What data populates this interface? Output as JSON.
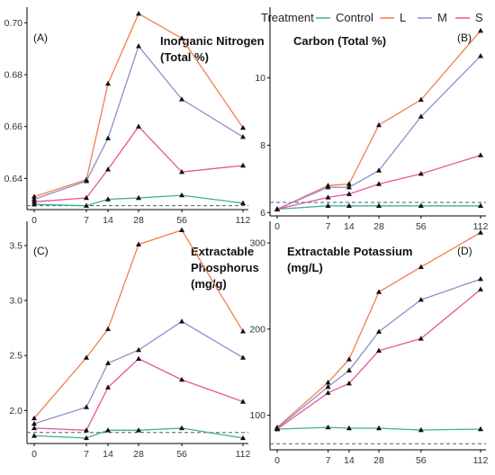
{
  "legend": {
    "title": "Treatment",
    "items": [
      {
        "label": "Control",
        "color": "#3fb08f"
      },
      {
        "label": "L",
        "color": "#f07f4f"
      },
      {
        "label": "M",
        "color": "#8f8fc9"
      },
      {
        "label": "S",
        "color": "#e8559a"
      }
    ]
  },
  "chart_data": [
    {
      "type": "line",
      "letter": "(A)",
      "title_lines": [
        "Inorganic Nitrogen",
        "(Total %)"
      ],
      "x": [
        0,
        7,
        14,
        28,
        56,
        112
      ],
      "x_ticks": [
        "0",
        "7",
        "14",
        "28",
        "56",
        "112"
      ],
      "y_ticks": [
        0.64,
        0.66,
        0.68,
        0.7
      ],
      "y_tick_labels": [
        "0.64",
        "0.66",
        "0.68",
        "0.70"
      ],
      "ylim": [
        0.628,
        0.706
      ],
      "reference_line": 0.6295,
      "series": [
        {
          "name": "Control",
          "values": [
            0.63,
            0.6295,
            0.632,
            0.6325,
            0.6335,
            0.6305
          ]
        },
        {
          "name": "L",
          "values": [
            0.633,
            0.6395,
            0.6765,
            0.7035,
            0.694,
            0.6595
          ]
        },
        {
          "name": "M",
          "values": [
            0.632,
            0.639,
            0.6555,
            0.691,
            0.6705,
            0.656
          ]
        },
        {
          "name": "S",
          "values": [
            0.631,
            0.6325,
            0.6435,
            0.66,
            0.6425,
            0.645
          ]
        }
      ]
    },
    {
      "type": "line",
      "letter": "(B)",
      "title_lines": [
        "Carbon (Total %)"
      ],
      "x": [
        0,
        7,
        14,
        28,
        56,
        112
      ],
      "x_ticks": [
        "0",
        "7",
        "14",
        "28",
        "56",
        "112"
      ],
      "y_ticks": [
        6,
        8,
        10
      ],
      "y_tick_labels": [
        "6",
        "8",
        "10"
      ],
      "ylim": [
        5.9,
        12.1
      ],
      "reference_line": 6.3,
      "series": [
        {
          "name": "Control",
          "values": [
            6.1,
            6.2,
            6.2,
            6.2,
            6.2,
            6.2
          ]
        },
        {
          "name": "L",
          "values": [
            6.1,
            6.8,
            6.85,
            8.6,
            9.35,
            11.4
          ]
        },
        {
          "name": "M",
          "values": [
            6.1,
            6.75,
            6.75,
            7.25,
            8.85,
            10.65
          ]
        },
        {
          "name": "S",
          "values": [
            6.1,
            6.45,
            6.55,
            6.85,
            7.15,
            7.7
          ]
        }
      ]
    },
    {
      "type": "line",
      "letter": "(C)",
      "title_lines": [
        "Extractable",
        "Phosphorus",
        "(mg/g)"
      ],
      "x": [
        0,
        7,
        14,
        28,
        56,
        112
      ],
      "x_ticks": [
        "0",
        "7",
        "14",
        "28",
        "56",
        "112"
      ],
      "y_ticks": [
        2.0,
        2.5,
        3.0,
        3.5
      ],
      "y_tick_labels": [
        "2.0",
        "2.5",
        "3.0",
        "3.5"
      ],
      "ylim": [
        1.7,
        3.72
      ],
      "reference_line": 1.8,
      "series": [
        {
          "name": "Control",
          "values": [
            1.77,
            1.75,
            1.82,
            1.82,
            1.84,
            1.75
          ]
        },
        {
          "name": "L",
          "values": [
            1.93,
            2.48,
            2.74,
            3.51,
            3.64,
            2.72
          ]
        },
        {
          "name": "M",
          "values": [
            1.88,
            2.03,
            2.43,
            2.55,
            2.81,
            2.48
          ]
        },
        {
          "name": "S",
          "values": [
            1.84,
            1.82,
            2.21,
            2.47,
            2.28,
            2.08
          ]
        }
      ]
    },
    {
      "type": "line",
      "letter": "(D)",
      "title_lines": [
        "Extractable Potassium",
        "(mg/L)"
      ],
      "x": [
        0,
        7,
        14,
        28,
        56,
        112
      ],
      "x_ticks": [
        "0",
        "7",
        "14",
        "28",
        "56",
        "112"
      ],
      "y_ticks": [
        100,
        200,
        300
      ],
      "y_tick_labels": [
        "100",
        "200",
        "300"
      ],
      "ylim": [
        60,
        325
      ],
      "reference_line": 67,
      "series": [
        {
          "name": "Control",
          "values": [
            84,
            86,
            85,
            85,
            83,
            84
          ]
        },
        {
          "name": "L",
          "values": [
            86,
            138,
            165,
            243,
            272,
            312
          ]
        },
        {
          "name": "M",
          "values": [
            85,
            133,
            152,
            197,
            234,
            258
          ]
        },
        {
          "name": "S",
          "values": [
            84,
            126,
            137,
            175,
            189,
            246
          ]
        }
      ]
    }
  ]
}
